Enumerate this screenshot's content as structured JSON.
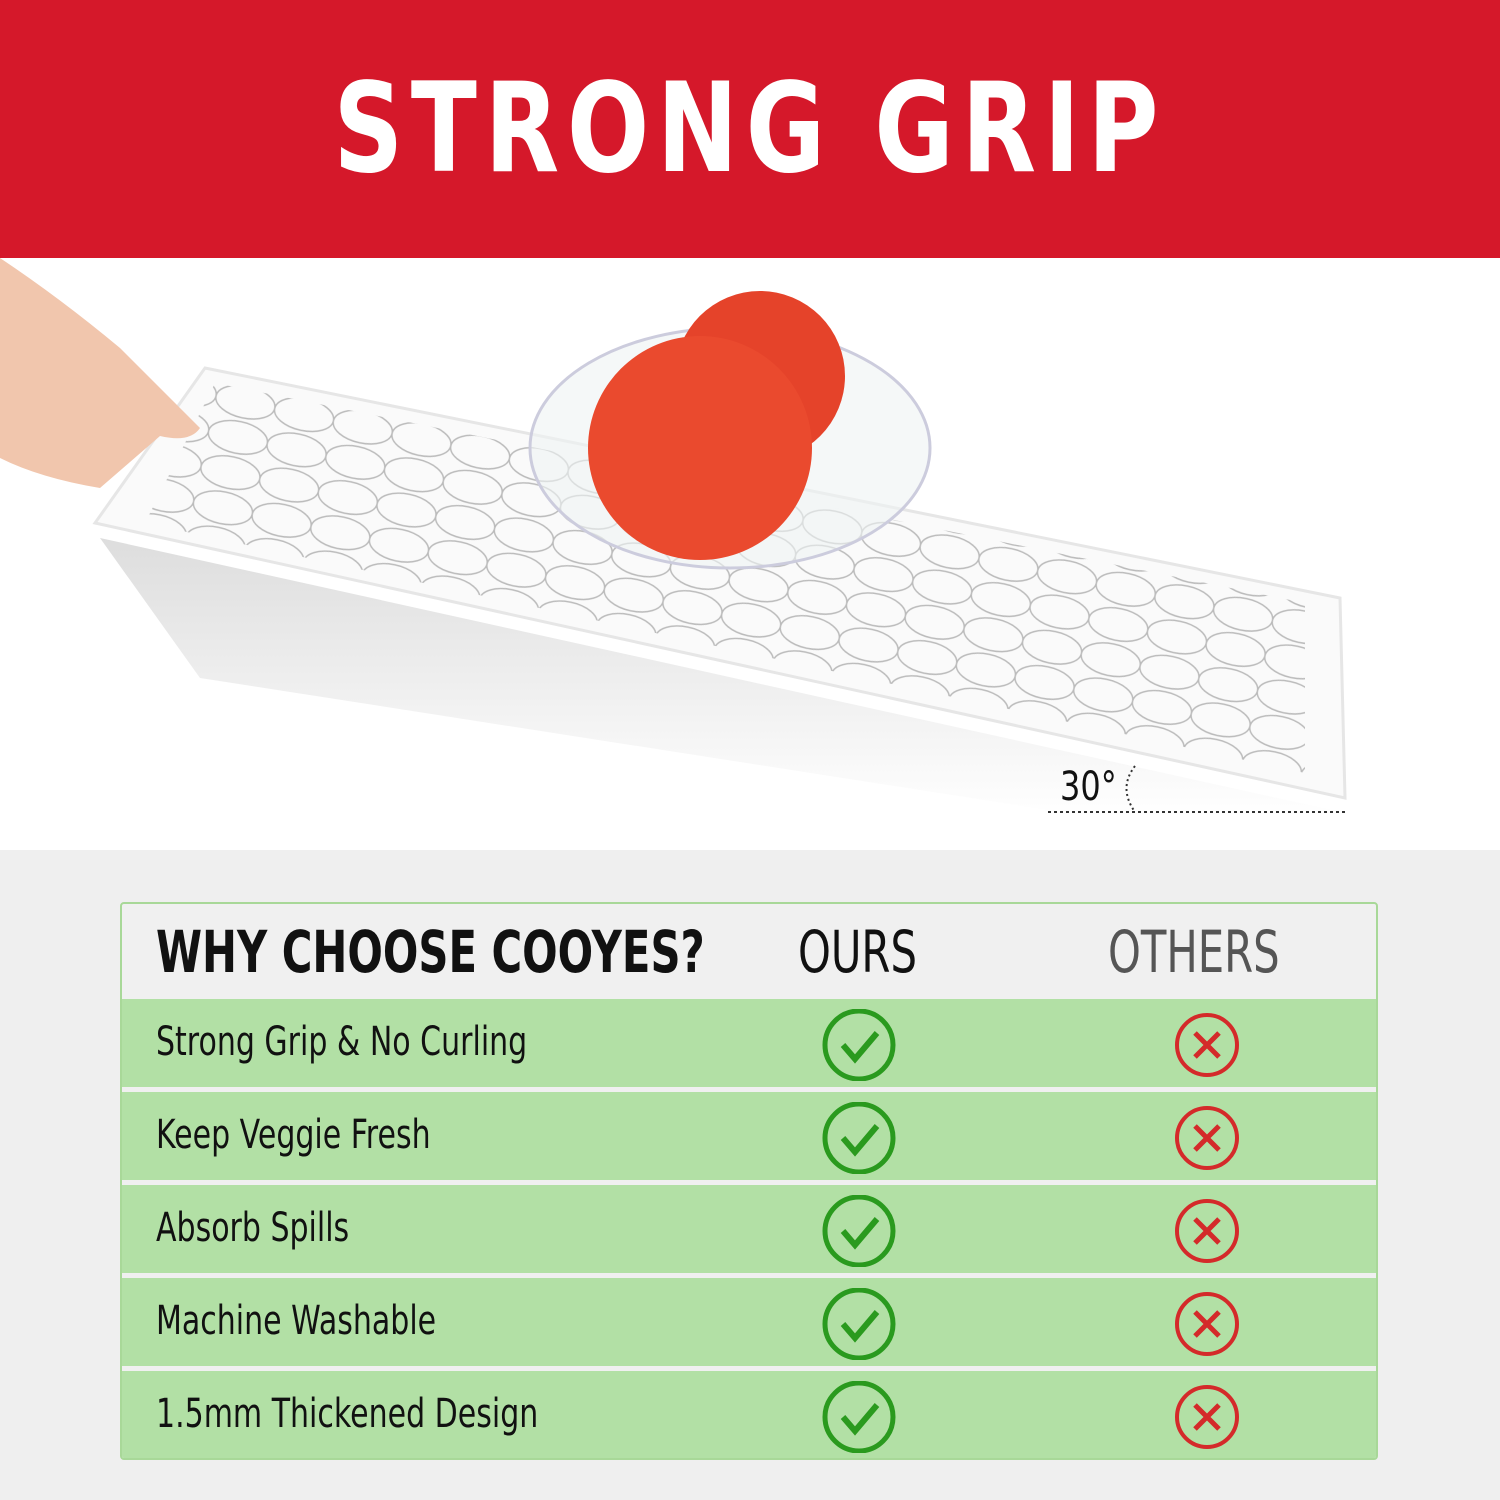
{
  "banner": {
    "title": "STRONG GRIP"
  },
  "photo": {
    "angle_label": "30°"
  },
  "table": {
    "headers": [
      "WHY CHOOSE COOYES?",
      "OURS",
      "OTHERS"
    ],
    "rows": [
      {
        "feature": "Strong Grip & No Curling",
        "ours": "check-icon",
        "others": "x-icon"
      },
      {
        "feature": "Keep Veggie Fresh",
        "ours": "check-icon",
        "others": "x-icon"
      },
      {
        "feature": "Absorb Spills",
        "ours": "check-icon",
        "others": "x-icon"
      },
      {
        "feature": "Machine Washable",
        "ours": "check-icon",
        "others": "x-icon"
      },
      {
        "feature": "1.5mm Thickened Design",
        "ours": "check-icon",
        "others": "x-icon"
      }
    ]
  },
  "colors": {
    "banner": "#d5182a",
    "row": "#b2e0a5",
    "check": "#2a9a1e",
    "cross": "#d42a2a"
  }
}
